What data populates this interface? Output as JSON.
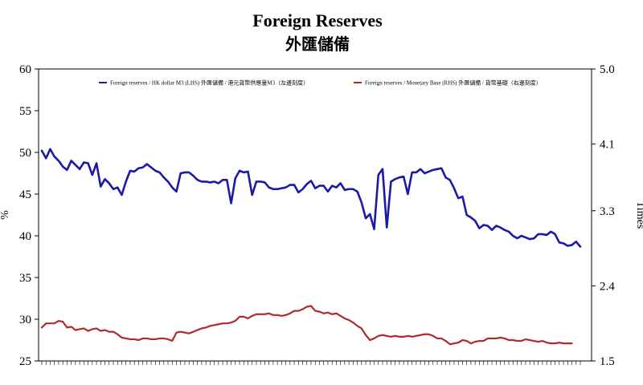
{
  "chart_data": {
    "type": "line",
    "title": "Foreign Reserves",
    "subtitle": "外匯儲備",
    "ylabel_left": "%",
    "ylabel_right": "Times",
    "left_axis": {
      "min": 25,
      "max": 60,
      "ticks": [
        25,
        30,
        35,
        40,
        45,
        50,
        55,
        60
      ]
    },
    "right_axis": {
      "min": 1.5,
      "max": 5.0,
      "ticks": [
        "1.5",
        "2.4",
        "3.3",
        "4.1",
        "5.0"
      ],
      "tick_values": [
        1.5,
        2.4,
        3.3,
        4.1,
        5.0
      ]
    },
    "grid": false,
    "legend_position": "top",
    "series": [
      {
        "name": "Foreign reserves / HK dollar M3 (LHS) 外匯儲備 / 港元貨幣供應量M3（左邊刻度）",
        "axis": "left",
        "color": "#1a1aa6",
        "values": [
          50.2,
          49.3,
          50.4,
          49.5,
          49.0,
          48.3,
          47.9,
          49.0,
          48.5,
          48.0,
          48.8,
          48.7,
          47.3,
          48.7,
          45.9,
          46.8,
          46.3,
          45.6,
          45.8,
          44.9,
          46.5,
          47.8,
          47.7,
          48.1,
          48.2,
          48.6,
          48.2,
          47.8,
          47.6,
          47.0,
          46.5,
          45.8,
          45.3,
          47.5,
          47.6,
          47.6,
          47.2,
          46.7,
          46.5,
          46.5,
          46.4,
          46.5,
          46.3,
          46.7,
          46.7,
          43.9,
          46.9,
          47.8,
          47.6,
          47.7,
          44.9,
          46.5,
          46.5,
          46.4,
          45.8,
          45.6,
          45.6,
          45.7,
          45.8,
          46.1,
          46.1,
          45.2,
          45.6,
          46.2,
          46.6,
          45.7,
          46.0,
          46.0,
          45.3,
          46.0,
          45.8,
          46.3,
          45.5,
          45.6,
          45.6,
          45.3,
          44.0,
          42.1,
          42.6,
          40.8,
          47.3,
          48.0,
          41.0,
          46.5,
          46.8,
          47.0,
          47.1,
          45.0,
          47.6,
          47.6,
          48.0,
          47.5,
          47.7,
          47.9,
          48.0,
          48.1,
          47.0,
          46.7,
          45.7,
          44.5,
          44.7,
          42.5,
          42.2,
          41.8,
          40.9,
          41.3,
          41.2,
          40.7,
          41.2,
          41.0,
          40.7,
          40.5,
          40.0,
          39.7,
          40.0,
          39.8,
          39.6,
          39.7,
          40.2,
          40.2,
          40.1,
          40.5,
          40.2,
          39.2,
          39.1,
          38.8,
          38.9,
          39.3,
          38.7
        ]
      },
      {
        "name": "Foreign reserves / Monetary Base (RHS) 外匯儲備 / 貨幣基礎（右邊刻度）",
        "axis": "right",
        "color": "#b02a2a",
        "values": [
          1.9,
          1.95,
          1.95,
          1.95,
          1.98,
          1.97,
          1.9,
          1.91,
          1.87,
          1.88,
          1.89,
          1.86,
          1.88,
          1.89,
          1.86,
          1.87,
          1.85,
          1.85,
          1.82,
          1.78,
          1.77,
          1.76,
          1.76,
          1.75,
          1.77,
          1.77,
          1.76,
          1.76,
          1.77,
          1.77,
          1.76,
          1.74,
          1.84,
          1.85,
          1.84,
          1.83,
          1.85,
          1.87,
          1.89,
          1.9,
          1.92,
          1.93,
          1.94,
          1.95,
          1.95,
          1.96,
          1.98,
          2.03,
          2.03,
          2.01,
          2.04,
          2.06,
          2.06,
          2.06,
          2.07,
          2.05,
          2.05,
          2.04,
          2.05,
          2.07,
          2.1,
          2.1,
          2.12,
          2.15,
          2.16,
          2.1,
          2.09,
          2.07,
          2.08,
          2.06,
          2.07,
          2.04,
          2.01,
          1.99,
          1.96,
          1.92,
          1.89,
          1.81,
          1.75,
          1.77,
          1.8,
          1.81,
          1.8,
          1.79,
          1.8,
          1.79,
          1.79,
          1.8,
          1.79,
          1.8,
          1.81,
          1.82,
          1.82,
          1.8,
          1.77,
          1.77,
          1.74,
          1.7,
          1.71,
          1.72,
          1.75,
          1.74,
          1.71,
          1.73,
          1.74,
          1.74,
          1.77,
          1.77,
          1.77,
          1.78,
          1.77,
          1.75,
          1.75,
          1.74,
          1.74,
          1.76,
          1.75,
          1.74,
          1.73,
          1.74,
          1.72,
          1.71,
          1.71,
          1.72,
          1.71,
          1.71,
          1.71
        ]
      }
    ]
  }
}
